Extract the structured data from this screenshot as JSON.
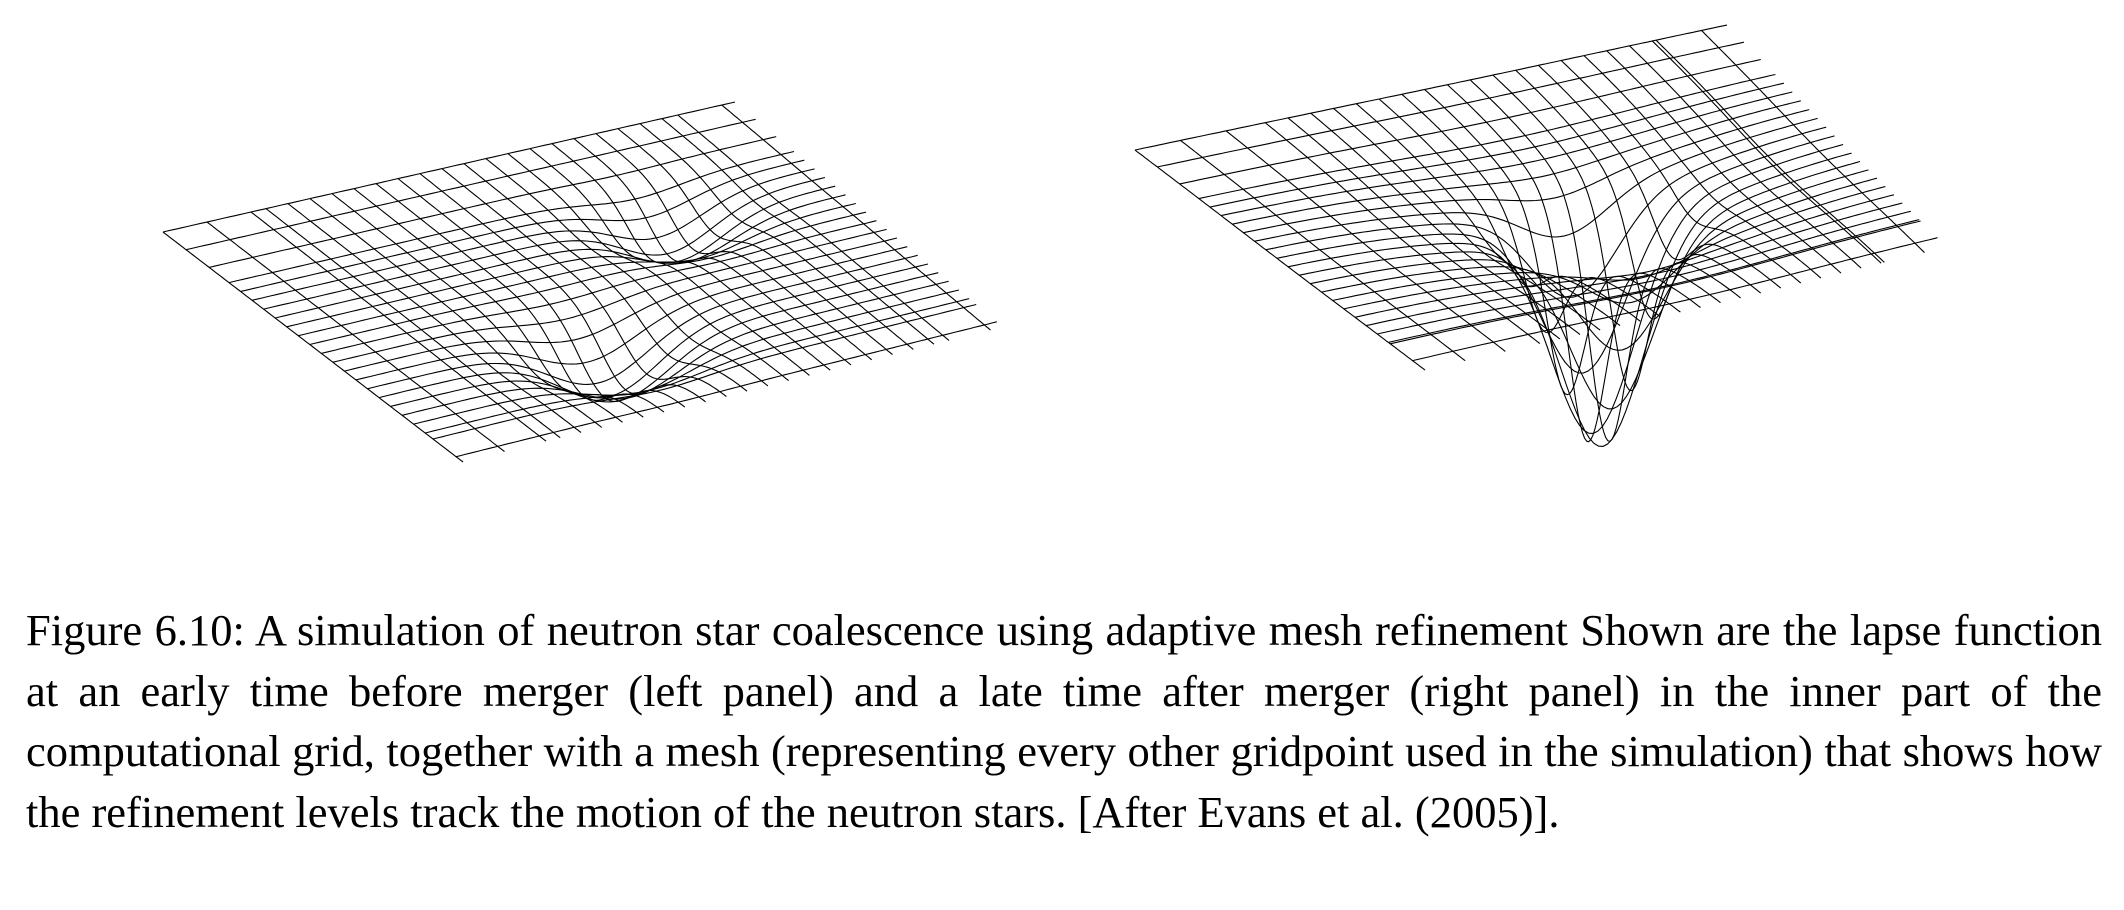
{
  "figure": {
    "panels": [
      {
        "name": "left-panel",
        "description_visible": false
      },
      {
        "name": "right-panel",
        "description_visible": false
      }
    ]
  },
  "caption": {
    "label": "Figure 6.10:",
    "text": "A simulation of neutron star coalescence using adaptive mesh refinement Shown are the lapse function at an early time before merger (left panel) and a late time after merger (right panel) in the inner part of the computational grid, together with a mesh (representing every other gridpoint used in the simulation) that shows how the refinement levels track the motion of the neutron stars. [After Evans et al. (2005)]."
  }
}
